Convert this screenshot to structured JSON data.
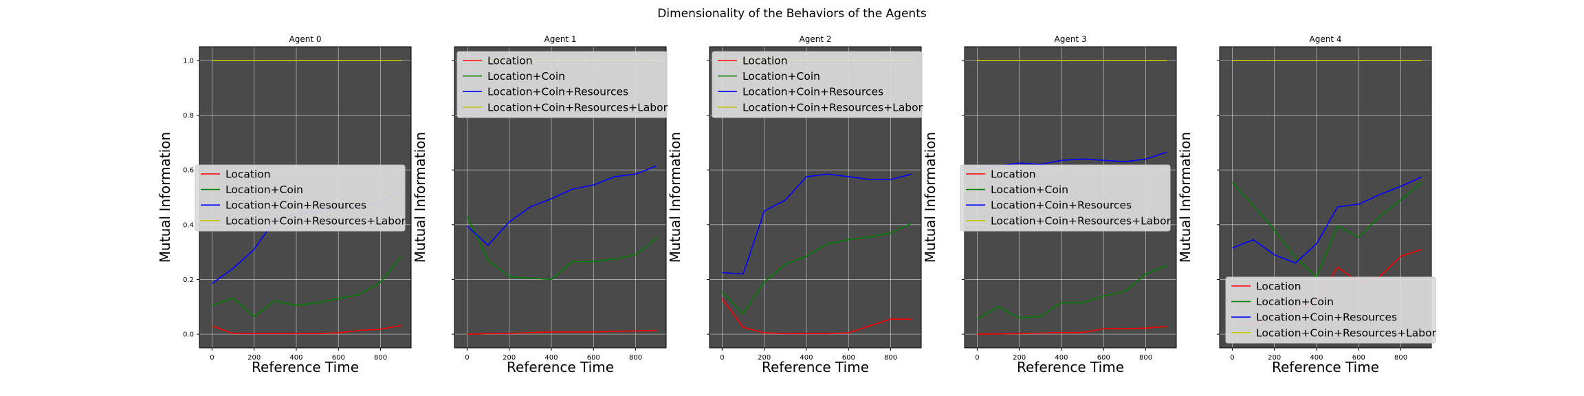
{
  "figure": {
    "title": "Dimensionality of the Behaviors of the Agents"
  },
  "colors": {
    "plot_background": "#4a4a4a",
    "grid": "#cfcfcf",
    "legend_background": "#dcdcdc",
    "Location": "#ff0000",
    "Location+Coin": "#008000",
    "Location+Coin+Resources": "#0000ff",
    "Location+Coin+Resources+Labor": "#c8c800"
  },
  "chart_data": [
    {
      "type": "line",
      "title": "Agent 0",
      "xlabel": "Reference Time",
      "ylabel": "Mutual Information",
      "xlim": [
        -60,
        945
      ],
      "ylim": [
        -0.05,
        1.05
      ],
      "x": [
        0,
        100,
        200,
        300,
        400,
        500,
        600,
        700,
        800,
        900
      ],
      "xticks": [
        "0",
        "200",
        "400",
        "600",
        "800"
      ],
      "yticks": [
        "0.0",
        "0.2",
        "0.4",
        "0.6",
        "0.8",
        "1.0"
      ],
      "grid": true,
      "legend_position": "center-left",
      "series": [
        {
          "name": "Location",
          "values": [
            0.03,
            0.003,
            0.002,
            0.002,
            0.002,
            0.002,
            0.005,
            0.014,
            0.018,
            0.032
          ]
        },
        {
          "name": "Location+Coin",
          "values": [
            0.105,
            0.132,
            0.065,
            0.122,
            0.105,
            0.115,
            0.13,
            0.145,
            0.19,
            0.285
          ]
        },
        {
          "name": "Location+Coin+Resources",
          "values": [
            0.185,
            0.24,
            0.31,
            0.42,
            0.44,
            0.45,
            0.46,
            0.47,
            0.48,
            0.53
          ]
        },
        {
          "name": "Location+Coin+Resources+Labor",
          "values": [
            1.0,
            1.0,
            1.0,
            1.0,
            1.0,
            1.0,
            1.0,
            1.0,
            1.0,
            1.0
          ]
        }
      ]
    },
    {
      "type": "line",
      "title": "Agent 1",
      "xlabel": "Reference Time",
      "ylabel": "Mutual Information",
      "xlim": [
        -60,
        945
      ],
      "ylim": [
        -0.05,
        1.05
      ],
      "x": [
        0,
        100,
        200,
        300,
        400,
        500,
        600,
        700,
        800,
        900
      ],
      "xticks": [
        "0",
        "200",
        "400",
        "600",
        "800"
      ],
      "yticks": [],
      "grid": true,
      "legend_position": "top-left",
      "series": [
        {
          "name": "Location",
          "values": [
            0.0,
            0.002,
            0.002,
            0.006,
            0.008,
            0.008,
            0.008,
            0.01,
            0.012,
            0.014
          ]
        },
        {
          "name": "Location+Coin",
          "values": [
            0.43,
            0.27,
            0.21,
            0.205,
            0.2,
            0.265,
            0.265,
            0.275,
            0.29,
            0.35
          ]
        },
        {
          "name": "Location+Coin+Resources",
          "values": [
            0.395,
            0.325,
            0.41,
            0.465,
            0.495,
            0.53,
            0.545,
            0.575,
            0.585,
            0.615
          ]
        },
        {
          "name": "Location+Coin+Resources+Labor",
          "values": [
            1.0,
            1.0,
            1.0,
            1.0,
            1.0,
            1.0,
            1.0,
            1.0,
            1.0,
            1.0
          ]
        }
      ]
    },
    {
      "type": "line",
      "title": "Agent 2",
      "xlabel": "Reference Time",
      "ylabel": "Mutual Information",
      "xlim": [
        -60,
        945
      ],
      "ylim": [
        -0.05,
        1.05
      ],
      "x": [
        0,
        100,
        200,
        300,
        400,
        500,
        600,
        700,
        800,
        900
      ],
      "xticks": [
        "0",
        "200",
        "400",
        "600",
        "800"
      ],
      "yticks": [],
      "grid": true,
      "legend_position": "top-left",
      "series": [
        {
          "name": "Location",
          "values": [
            0.13,
            0.025,
            0.005,
            0.002,
            0.002,
            0.002,
            0.005,
            0.03,
            0.055,
            0.055
          ]
        },
        {
          "name": "Location+Coin",
          "values": [
            0.155,
            0.075,
            0.19,
            0.255,
            0.285,
            0.33,
            0.345,
            0.355,
            0.37,
            0.405
          ]
        },
        {
          "name": "Location+Coin+Resources",
          "values": [
            0.225,
            0.22,
            0.45,
            0.49,
            0.575,
            0.585,
            0.575,
            0.565,
            0.565,
            0.585
          ]
        },
        {
          "name": "Location+Coin+Resources+Labor",
          "values": [
            1.0,
            1.0,
            1.0,
            1.0,
            1.0,
            1.0,
            1.0,
            1.0,
            1.0,
            1.0
          ]
        }
      ]
    },
    {
      "type": "line",
      "title": "Agent 3",
      "xlabel": "Reference Time",
      "ylabel": "Mutual Information",
      "xlim": [
        -60,
        945
      ],
      "ylim": [
        -0.05,
        1.05
      ],
      "x": [
        0,
        100,
        200,
        300,
        400,
        500,
        600,
        700,
        800,
        900
      ],
      "xticks": [
        "0",
        "200",
        "400",
        "600",
        "800"
      ],
      "yticks": [],
      "grid": true,
      "legend_position": "center-left",
      "series": [
        {
          "name": "Location",
          "values": [
            0.0,
            0.001,
            0.002,
            0.004,
            0.006,
            0.006,
            0.02,
            0.02,
            0.022,
            0.028
          ]
        },
        {
          "name": "Location+Coin",
          "values": [
            0.055,
            0.1,
            0.06,
            0.065,
            0.115,
            0.115,
            0.14,
            0.155,
            0.22,
            0.25
          ]
        },
        {
          "name": "Location+Coin+Resources",
          "values": [
            0.6,
            0.615,
            0.625,
            0.62,
            0.635,
            0.64,
            0.635,
            0.63,
            0.64,
            0.665
          ]
        },
        {
          "name": "Location+Coin+Resources+Labor",
          "values": [
            1.0,
            1.0,
            1.0,
            1.0,
            1.0,
            1.0,
            1.0,
            1.0,
            1.0,
            1.0
          ]
        }
      ]
    },
    {
      "type": "line",
      "title": "Agent 4",
      "xlabel": "Reference Time",
      "ylabel": "Mutual Information",
      "xlim": [
        -60,
        945
      ],
      "ylim": [
        -0.05,
        1.05
      ],
      "x": [
        0,
        100,
        200,
        300,
        400,
        500,
        600,
        700,
        800,
        900
      ],
      "xticks": [
        "0",
        "200",
        "400",
        "600",
        "800"
      ],
      "yticks": [],
      "grid": true,
      "legend_position": "bottom-right",
      "series": [
        {
          "name": "Location",
          "values": [
            0.03,
            0.04,
            0.06,
            0.09,
            0.12,
            0.245,
            0.19,
            0.21,
            0.285,
            0.31
          ]
        },
        {
          "name": "Location+Coin",
          "values": [
            0.555,
            0.47,
            0.38,
            0.28,
            0.21,
            0.395,
            0.355,
            0.43,
            0.49,
            0.555
          ]
        },
        {
          "name": "Location+Coin+Resources",
          "values": [
            0.315,
            0.345,
            0.29,
            0.26,
            0.33,
            0.465,
            0.475,
            0.51,
            0.54,
            0.575
          ]
        },
        {
          "name": "Location+Coin+Resources+Labor",
          "values": [
            1.0,
            1.0,
            1.0,
            1.0,
            1.0,
            1.0,
            1.0,
            1.0,
            1.0,
            1.0
          ]
        }
      ]
    }
  ]
}
